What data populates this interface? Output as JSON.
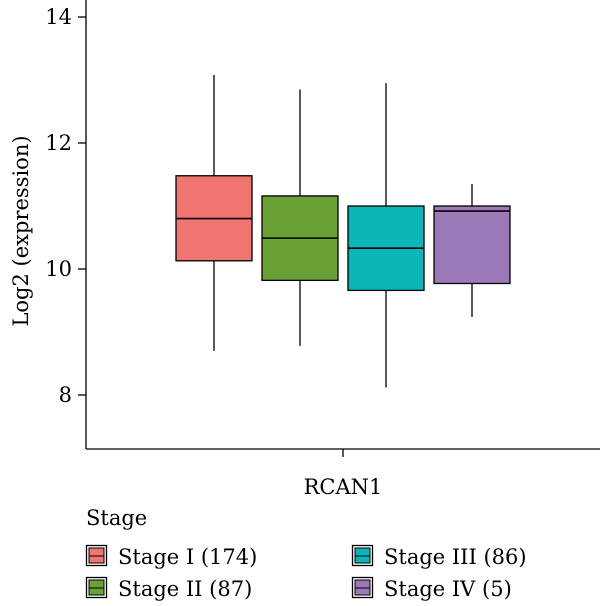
{
  "chart_data": {
    "type": "box",
    "title": "",
    "xlabel": "RCAN1",
    "ylabel": "Log2 (expression)",
    "ylim": [
      7.2,
      14.2
    ],
    "yticks": [
      8,
      10,
      12,
      14
    ],
    "grid": false,
    "legend": {
      "title": "Stage",
      "placement": "bottom",
      "entries": [
        "Stage I (174)",
        "Stage II (87)",
        "Stage III (86)",
        "Stage IV (5)"
      ]
    },
    "series": [
      {
        "name": "Stage I (174)",
        "color": "#F07470",
        "stats": {
          "min": 8.7,
          "q1": 10.13,
          "median": 10.8,
          "q3": 11.48,
          "max": 13.08
        }
      },
      {
        "name": "Stage II (87)",
        "color": "#6AA135",
        "stats": {
          "min": 8.78,
          "q1": 9.82,
          "median": 10.49,
          "q3": 11.16,
          "max": 12.85
        }
      },
      {
        "name": "Stage III (86)",
        "color": "#0CB5B8",
        "stats": {
          "min": 8.12,
          "q1": 9.66,
          "median": 10.33,
          "q3": 11.0,
          "max": 12.95
        }
      },
      {
        "name": "Stage IV (5)",
        "color": "#9C78B8",
        "stats": {
          "min": 9.24,
          "q1": 9.77,
          "median": 10.92,
          "q3": 11.0,
          "max": 11.35
        }
      }
    ]
  }
}
